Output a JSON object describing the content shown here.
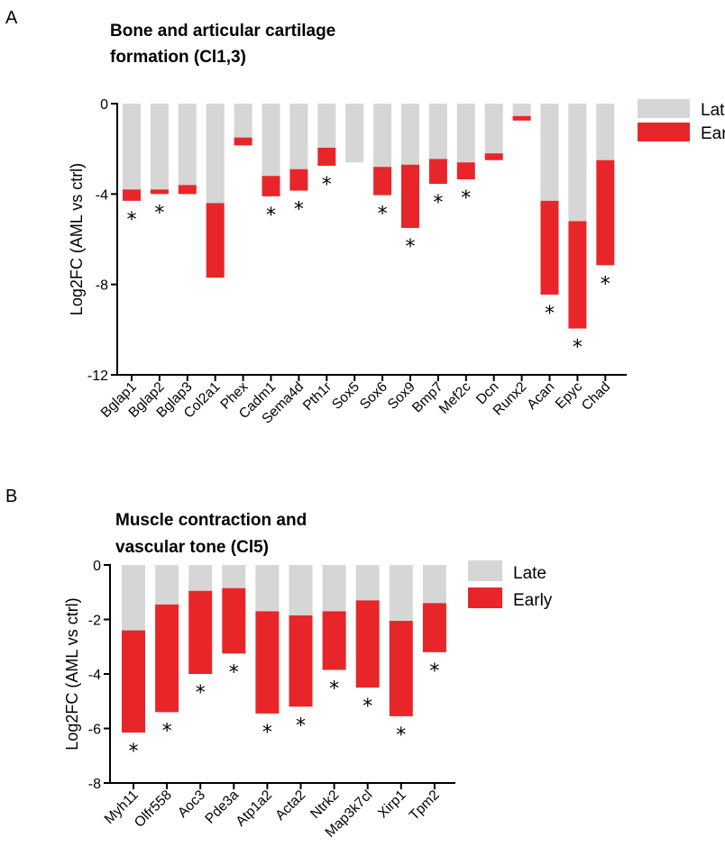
{
  "chart_data": [
    {
      "panel": "A",
      "type": "bar",
      "title_lines": [
        "Bone and articular cartilage",
        "formation (Cl1,3)"
      ],
      "ylabel": "Log2FC (AML vs ctrl)",
      "ylim": [
        -12,
        0
      ],
      "yticks": [
        "0",
        "-4",
        "-8",
        "-12"
      ],
      "ytick_values": [
        0,
        -4,
        -8,
        -12
      ],
      "categories": [
        "Bglap1",
        "Bglap2",
        "Bglap3",
        "Col2a1",
        "Phex",
        "Cadm1",
        "Sema4d",
        "Pth1r",
        "Sox5",
        "Sox6",
        "Sox9",
        "Bmp7",
        "Mef2c",
        "Dcn",
        "Runx2",
        "Acan",
        "Epyc",
        "Chad"
      ],
      "series": [
        {
          "name": "Late",
          "color": "#d6d6d6",
          "values": [
            -3.8,
            -3.8,
            -3.6,
            -4.4,
            -1.5,
            -3.2,
            -2.9,
            -1.95,
            -2.6,
            -2.8,
            -2.7,
            -2.45,
            -2.6,
            -2.2,
            -0.55,
            -4.3,
            -5.2,
            -2.5
          ]
        },
        {
          "name": "Early",
          "color": "#e8262a",
          "values": [
            -4.3,
            -4.0,
            -4.0,
            -7.7,
            -1.85,
            -4.1,
            -3.85,
            -2.75,
            null,
            -4.05,
            -5.5,
            -3.55,
            -3.35,
            -2.5,
            -0.75,
            -8.45,
            -9.95,
            -7.15
          ]
        }
      ],
      "significant": [
        true,
        true,
        false,
        false,
        false,
        true,
        true,
        true,
        false,
        true,
        true,
        true,
        true,
        false,
        false,
        true,
        true,
        true
      ],
      "star_symbol": "*",
      "legend_position": "right"
    },
    {
      "panel": "B",
      "type": "bar",
      "title_lines": [
        "Muscle contraction and",
        "vascular tone (Cl5)"
      ],
      "ylabel": "Log2FC (AML vs ctrl)",
      "ylim": [
        -8,
        0
      ],
      "yticks": [
        "0",
        "-2",
        "-4",
        "-6",
        "-8"
      ],
      "ytick_values": [
        0,
        -2,
        -4,
        -6,
        -8
      ],
      "categories": [
        "Myh11",
        "Olfr558",
        "Aoc3",
        "Pde3a",
        "Atp1a2",
        "Acta2",
        "Ntrk2",
        "Map3k7cl",
        "Xirp1",
        "Tpm2"
      ],
      "series": [
        {
          "name": "Late",
          "color": "#d6d6d6",
          "values": [
            -2.4,
            -1.45,
            -0.95,
            -0.85,
            -1.7,
            -1.85,
            -1.7,
            -1.3,
            -2.05,
            -1.4
          ]
        },
        {
          "name": "Early",
          "color": "#e8262a",
          "values": [
            -6.15,
            -5.4,
            -4.0,
            -3.25,
            -5.45,
            -5.2,
            -3.85,
            -4.5,
            -5.55,
            -3.2
          ]
        }
      ],
      "significant": [
        true,
        true,
        true,
        true,
        true,
        true,
        true,
        true,
        true,
        true
      ],
      "star_symbol": "*",
      "legend_position": "right"
    }
  ]
}
